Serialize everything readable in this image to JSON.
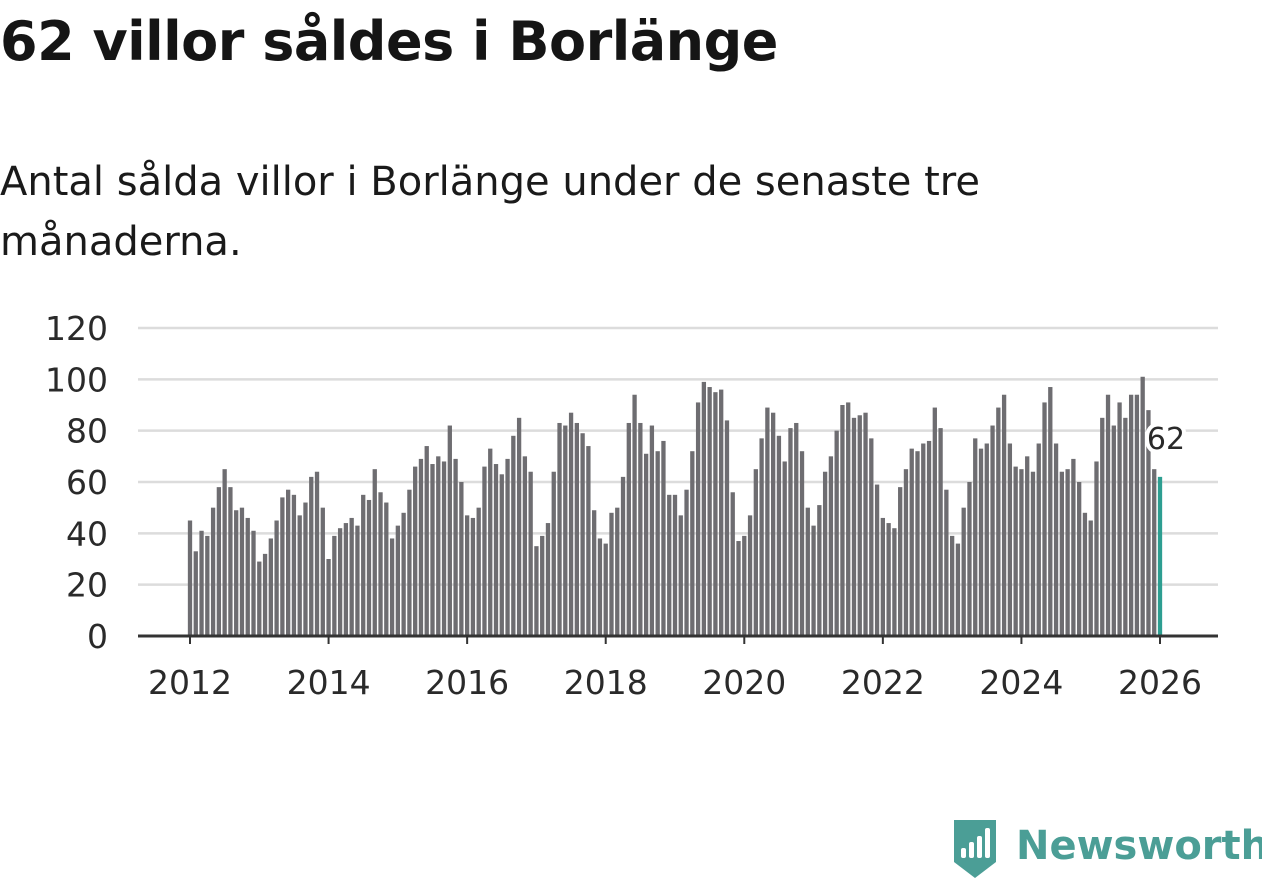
{
  "title": "62 villor såldes i Borlänge",
  "subtitle": "Antal sålda villor i Borlänge under de senaste tre månaderna.",
  "brand": "Newsworthy",
  "colors": {
    "bar": "#6e6d71",
    "highlight": "#2d9e91",
    "grid": "#dcdcdc",
    "axis": "#333333",
    "brand": "#4b9e96"
  },
  "chart_data": {
    "type": "bar",
    "title": "Antal sålda villor i Borlänge",
    "xlabel": "",
    "ylabel": "",
    "ylim": [
      0,
      120
    ],
    "yticks": [
      0,
      20,
      40,
      60,
      80,
      100,
      120
    ],
    "xticks": [
      "2012",
      "2014",
      "2016",
      "2018",
      "2020",
      "2022",
      "2024",
      "2026"
    ],
    "start": "2012-01",
    "highlight_label": "62",
    "values": [
      45,
      33,
      41,
      39,
      50,
      58,
      65,
      58,
      49,
      50,
      46,
      41,
      29,
      32,
      38,
      45,
      54,
      57,
      55,
      47,
      52,
      62,
      64,
      50,
      30,
      39,
      42,
      44,
      46,
      43,
      55,
      53,
      65,
      56,
      52,
      38,
      43,
      48,
      57,
      66,
      69,
      74,
      67,
      70,
      68,
      82,
      69,
      60,
      47,
      46,
      50,
      66,
      73,
      67,
      63,
      69,
      78,
      85,
      70,
      64,
      35,
      39,
      44,
      64,
      83,
      82,
      87,
      83,
      79,
      74,
      49,
      38,
      36,
      48,
      50,
      62,
      83,
      94,
      83,
      71,
      82,
      72,
      76,
      55,
      55,
      47,
      57,
      72,
      91,
      99,
      97,
      95,
      96,
      84,
      56,
      37,
      39,
      47,
      65,
      77,
      89,
      87,
      78,
      68,
      81,
      83,
      72,
      50,
      43,
      51,
      64,
      70,
      80,
      90,
      91,
      85,
      86,
      87,
      77,
      59,
      46,
      44,
      42,
      58,
      65,
      73,
      72,
      75,
      76,
      89,
      81,
      57,
      39,
      36,
      50,
      60,
      77,
      73,
      75,
      82,
      89,
      94,
      75,
      66,
      65,
      70,
      64,
      75,
      91,
      97,
      75,
      64,
      65,
      69,
      60,
      48,
      45,
      68,
      85,
      94,
      82,
      91,
      85,
      94,
      94,
      101,
      88,
      65,
      62
    ]
  }
}
